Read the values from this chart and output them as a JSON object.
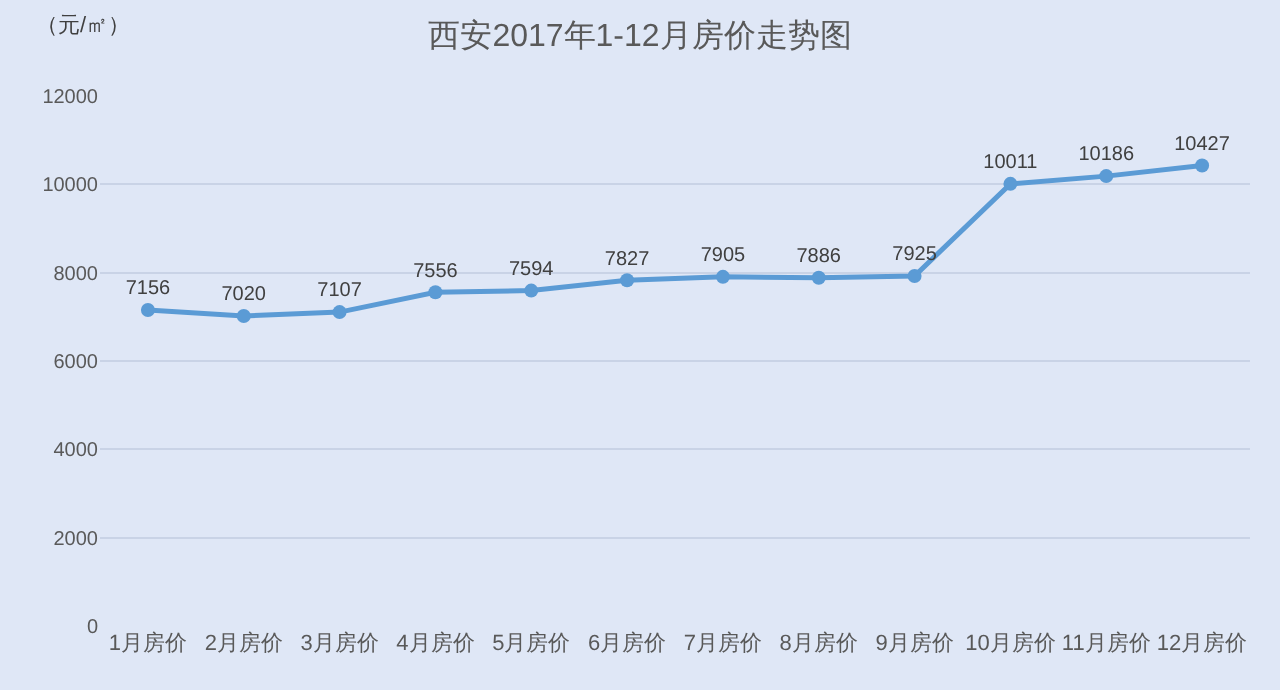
{
  "chart_data": {
    "type": "line",
    "title": "西安2017年1-12月房价走势图",
    "ylabel": "（元/㎡）",
    "categories": [
      "1月房价",
      "2月房价",
      "3月房价",
      "4月房价",
      "5月房价",
      "6月房价",
      "7月房价",
      "8月房价",
      "9月房价",
      "10月房价",
      "11月房价",
      "12月房价"
    ],
    "series": [
      {
        "color": "#5b9bd5",
        "values": [
          7156,
          7020,
          7107,
          7556,
          7594,
          7827,
          7905,
          7886,
          7925,
          10011,
          10186,
          10427
        ]
      }
    ],
    "ylim": [
      0,
      12000
    ],
    "yticks": [
      0,
      2000,
      4000,
      6000,
      8000,
      10000,
      12000
    ],
    "grid": "y",
    "marker": "circle",
    "line_style": "solid",
    "data_labels": true
  }
}
